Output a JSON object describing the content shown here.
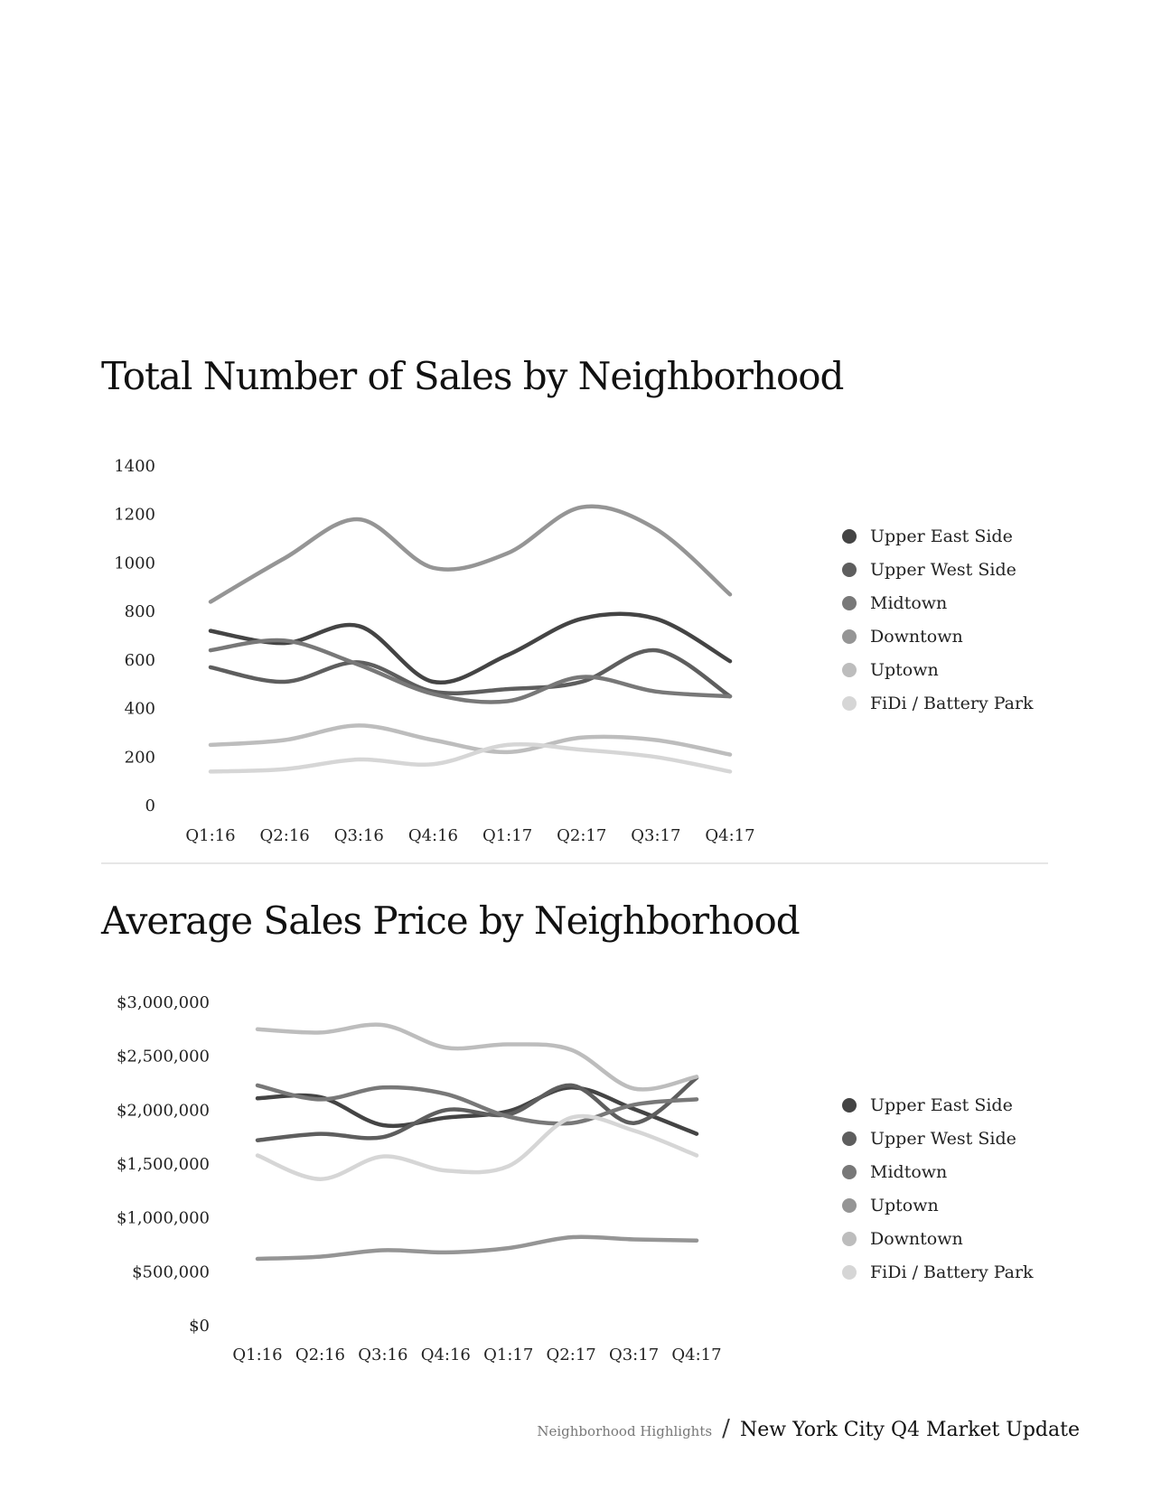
{
  "charts": [
    {
      "title": "Total Number of Sales by Neighborhood",
      "chart_data": {
        "type": "line",
        "title": "Total Number of Sales by Neighborhood",
        "xlabel": "",
        "ylabel": "",
        "categories": [
          "Q1:16",
          "Q2:16",
          "Q3:16",
          "Q4:16",
          "Q1:17",
          "Q2:17",
          "Q3:17",
          "Q4:17"
        ],
        "ylim": [
          0,
          1400
        ],
        "yticks": [
          0,
          200,
          400,
          600,
          800,
          1000,
          1200,
          1400
        ],
        "ytick_labels": [
          "0",
          "200",
          "400",
          "600",
          "800",
          "1000",
          "1200",
          "1400"
        ],
        "grid": false,
        "legend_position": "right",
        "series": [
          {
            "name": "Upper East Side",
            "color": "#444444",
            "values": [
              720,
              670,
              740,
              510,
              620,
              770,
              770,
              595
            ]
          },
          {
            "name": "Upper West Side",
            "color": "#5e5e5e",
            "values": [
              570,
              510,
              590,
              470,
              480,
              510,
              640,
              450
            ]
          },
          {
            "name": "Midtown",
            "color": "#787878",
            "values": [
              640,
              680,
              580,
              460,
              430,
              530,
              470,
              450
            ]
          },
          {
            "name": "Downtown",
            "color": "#959595",
            "values": [
              840,
              1020,
              1180,
              980,
              1040,
              1230,
              1140,
              870
            ]
          },
          {
            "name": "Uptown",
            "color": "#bdbdbd",
            "values": [
              250,
              270,
              330,
              270,
              220,
              280,
              270,
              210
            ]
          },
          {
            "name": "FiDi / Battery Park",
            "color": "#d6d6d6",
            "values": [
              140,
              150,
              190,
              170,
              250,
              230,
              200,
              140
            ]
          }
        ]
      }
    },
    {
      "title": "Average Sales Price by Neighborhood",
      "chart_data": {
        "type": "line",
        "title": "Average Sales Price by Neighborhood",
        "xlabel": "",
        "ylabel": "",
        "categories": [
          "Q1:16",
          "Q2:16",
          "Q3:16",
          "Q4:16",
          "Q1:17",
          "Q2:17",
          "Q3:17",
          "Q4:17"
        ],
        "ylim": [
          0,
          3000000
        ],
        "yticks": [
          0,
          500000,
          1000000,
          1500000,
          2000000,
          2500000,
          3000000
        ],
        "ytick_labels": [
          "$0",
          "$500,000",
          "$1,000,000",
          "$1,500,000",
          "$2,000,000",
          "$2,500,000",
          "$3,000,000"
        ],
        "grid": false,
        "legend_position": "right",
        "series": [
          {
            "name": "Upper East Side",
            "color": "#444444",
            "values": [
              2110000,
              2120000,
              1860000,
              1930000,
              1990000,
              2210000,
              2010000,
              1780000
            ]
          },
          {
            "name": "Upper West Side",
            "color": "#5e5e5e",
            "values": [
              1720000,
              1780000,
              1750000,
              2000000,
              1960000,
              2230000,
              1880000,
              2300000
            ]
          },
          {
            "name": "Midtown",
            "color": "#787878",
            "values": [
              2230000,
              2100000,
              2210000,
              2150000,
              1940000,
              1880000,
              2050000,
              2100000
            ]
          },
          {
            "name": "Uptown",
            "color": "#959595",
            "values": [
              620000,
              640000,
              700000,
              680000,
              720000,
              820000,
              800000,
              790000
            ]
          },
          {
            "name": "Downtown",
            "color": "#bdbdbd",
            "values": [
              2750000,
              2720000,
              2790000,
              2580000,
              2610000,
              2560000,
              2200000,
              2310000
            ]
          },
          {
            "name": "FiDi / Battery Park",
            "color": "#d6d6d6",
            "values": [
              1580000,
              1360000,
              1570000,
              1440000,
              1480000,
              1930000,
              1810000,
              1580000
            ]
          }
        ]
      }
    }
  ],
  "footer": {
    "section": "Neighborhood Highlights",
    "separator": "/",
    "publication": "New York City Q4 Market Update"
  }
}
